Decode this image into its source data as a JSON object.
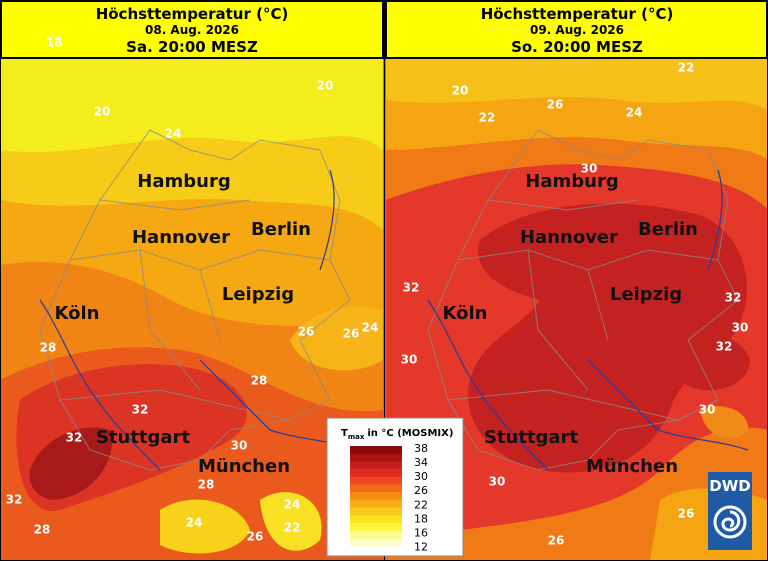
{
  "panels": [
    {
      "title": "Höchsttemperatur (°C)",
      "date": "08. Aug. 2026",
      "time": "Sa. 20:00 MESZ",
      "cities": [
        "Hamburg",
        "Hannover",
        "Berlin",
        "Leipzig",
        "Köln",
        "Stuttgart",
        "München"
      ],
      "contour_labels": [
        18,
        20,
        20,
        24,
        26,
        26,
        24,
        28,
        28,
        32,
        32,
        30,
        28,
        32,
        28,
        24,
        24,
        22,
        26
      ]
    },
    {
      "title": "Höchsttemperatur (°C)",
      "date": "09. Aug. 2026",
      "time": "So. 20:00 MESZ",
      "cities": [
        "Hamburg",
        "Hannover",
        "Berlin",
        "Leipzig",
        "Köln",
        "Stuttgart",
        "München"
      ],
      "contour_labels": [
        22,
        20,
        22,
        26,
        24,
        30,
        32,
        32,
        30,
        32,
        30,
        30,
        30,
        26,
        26
      ]
    }
  ],
  "legend": {
    "symbol": "T",
    "subscript": "max",
    "caption": "in °C (MOSMIX)",
    "ticks": [
      38,
      34,
      30,
      26,
      22,
      18,
      16,
      12
    ],
    "colors": [
      "#8c0a0a",
      "#a81414",
      "#c41e1e",
      "#de2c24",
      "#ee4620",
      "#f26a16",
      "#f58c14",
      "#f7ac16",
      "#f8c81a",
      "#f8e21e",
      "#fbf53a",
      "#fcfa8a",
      "#fefdc8"
    ]
  },
  "logo": "DWD"
}
